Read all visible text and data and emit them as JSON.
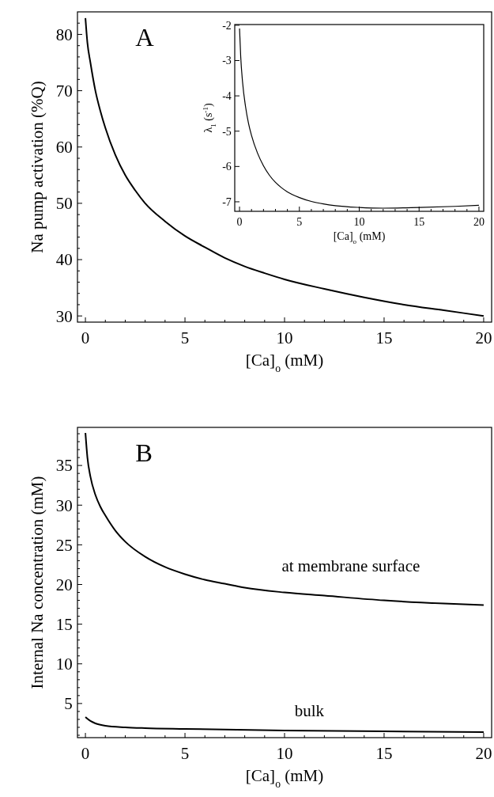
{
  "chart_data": [
    {
      "type": "line",
      "xlabel": "[Ca]$_{o}$ (mM)",
      "ylabel": "Na pump activation (%Q)",
      "annotations": [
        "A"
      ],
      "xlim": [
        -0.4,
        20.4
      ],
      "ylim": [
        28.9,
        84
      ],
      "xticks": [
        0,
        {
          "value": 1,
          "label": null
        },
        {
          "value": 2,
          "label": null
        },
        {
          "value": 3,
          "label": null
        },
        {
          "value": 4,
          "label": null
        },
        5,
        {
          "value": 6,
          "label": null
        },
        {
          "value": 7,
          "label": null
        },
        {
          "value": 8,
          "label": null
        },
        {
          "value": 9,
          "label": null
        },
        10,
        {
          "value": 11,
          "label": null
        },
        {
          "value": 12,
          "label": null
        },
        {
          "value": 13,
          "label": null
        },
        {
          "value": 14,
          "label": null
        },
        15,
        {
          "value": 16,
          "label": null
        },
        {
          "value": 17,
          "label": null
        },
        {
          "value": 18,
          "label": null
        },
        {
          "value": 19,
          "label": null
        },
        20
      ],
      "yticks": [
        30,
        {
          "value": 32,
          "label": null
        },
        {
          "value": 34,
          "label": null
        },
        {
          "value": 36,
          "label": null
        },
        {
          "value": 38,
          "label": null
        },
        40,
        {
          "value": 42,
          "label": null
        },
        {
          "value": 44,
          "label": null
        },
        {
          "value": 46,
          "label": null
        },
        {
          "value": 48,
          "label": null
        },
        50,
        {
          "value": 52,
          "label": null
        },
        {
          "value": 54,
          "label": null
        },
        {
          "value": 56,
          "label": null
        },
        {
          "value": 58,
          "label": null
        },
        60,
        {
          "value": 62,
          "label": null
        },
        {
          "value": 64,
          "label": null
        },
        {
          "value": 66,
          "label": null
        },
        {
          "value": 68,
          "label": null
        },
        70,
        {
          "value": 72,
          "label": null
        },
        {
          "value": 74,
          "label": null
        },
        {
          "value": 76,
          "label": null
        },
        {
          "value": 78,
          "label": null
        },
        80,
        {
          "value": 82,
          "label": null
        }
      ],
      "grid": false,
      "marker": "none",
      "line_style": "solid",
      "series": [
        {
          "color": "#000000",
          "x": [
            0,
            0.1,
            0.25,
            0.5,
            0.75,
            1,
            1.5,
            2,
            2.5,
            3,
            4,
            5,
            6,
            7,
            8,
            9,
            10,
            12,
            14,
            16,
            18,
            20
          ],
          "values": [
            82.9,
            78.5,
            75.0,
            70.0,
            66.4,
            63.4,
            58.6,
            55.0,
            52.3,
            50.0,
            46.8,
            44.2,
            42.2,
            40.3,
            38.8,
            37.6,
            36.5,
            34.8,
            33.3,
            32.0,
            31.0,
            30.0
          ]
        }
      ]
    },
    {
      "type": "line",
      "xlabel": "[Ca]$_{o}$ (mM)",
      "ylabel": "λ$_{1}$ (s$^{-1}$)",
      "xlim": [
        -0.4,
        20.4
      ],
      "ylim": [
        -7.27,
        -1.98
      ],
      "xticks": [
        0,
        {
          "value": 1,
          "label": null
        },
        {
          "value": 2,
          "label": null
        },
        {
          "value": 3,
          "label": null
        },
        {
          "value": 4,
          "label": null
        },
        5,
        {
          "value": 6,
          "label": null
        },
        {
          "value": 7,
          "label": null
        },
        {
          "value": 8,
          "label": null
        },
        {
          "value": 9,
          "label": null
        },
        10,
        {
          "value": 11,
          "label": null
        },
        {
          "value": 12,
          "label": null
        },
        {
          "value": 13,
          "label": null
        },
        {
          "value": 14,
          "label": null
        },
        15,
        {
          "value": 16,
          "label": null
        },
        {
          "value": 17,
          "label": null
        },
        {
          "value": 18,
          "label": null
        },
        {
          "value": 19,
          "label": null
        },
        20
      ],
      "yticks": [
        -7,
        -6,
        -5,
        -4,
        -3,
        -2
      ],
      "grid": false,
      "marker": "none",
      "line_style": "solid",
      "series": [
        {
          "color": "#000000",
          "x": [
            0,
            0.1,
            0.25,
            0.5,
            0.75,
            1,
            1.5,
            2,
            2.5,
            3,
            3.5,
            4,
            5,
            6,
            7,
            8,
            10,
            12,
            15,
            18,
            20
          ],
          "values": [
            -2.09,
            -2.9,
            -3.6,
            -4.3,
            -4.78,
            -5.12,
            -5.62,
            -5.98,
            -6.25,
            -6.45,
            -6.6,
            -6.72,
            -6.88,
            -6.99,
            -7.06,
            -7.11,
            -7.16,
            -7.18,
            -7.16,
            -7.13,
            -7.1
          ]
        }
      ]
    },
    {
      "type": "line",
      "xlabel": "[Ca]$_{o}$ (mM)",
      "ylabel": "Internal Na concentration (mM)",
      "annotations": [
        "B",
        "at membrane surface",
        "bulk"
      ],
      "xlim": [
        -0.4,
        20.4
      ],
      "ylim": [
        0.7,
        39.8
      ],
      "xticks": [
        0,
        {
          "value": 1,
          "label": null
        },
        {
          "value": 2,
          "label": null
        },
        {
          "value": 3,
          "label": null
        },
        {
          "value": 4,
          "label": null
        },
        5,
        {
          "value": 6,
          "label": null
        },
        {
          "value": 7,
          "label": null
        },
        {
          "value": 8,
          "label": null
        },
        {
          "value": 9,
          "label": null
        },
        10,
        {
          "value": 11,
          "label": null
        },
        {
          "value": 12,
          "label": null
        },
        {
          "value": 13,
          "label": null
        },
        {
          "value": 14,
          "label": null
        },
        15,
        {
          "value": 16,
          "label": null
        },
        {
          "value": 17,
          "label": null
        },
        {
          "value": 18,
          "label": null
        },
        {
          "value": 19,
          "label": null
        },
        20
      ],
      "yticks": [
        {
          "value": 1,
          "label": null
        },
        {
          "value": 2,
          "label": null
        },
        {
          "value": 3,
          "label": null
        },
        {
          "value": 4,
          "label": null
        },
        5,
        {
          "value": 6,
          "label": null
        },
        {
          "value": 7,
          "label": null
        },
        {
          "value": 8,
          "label": null
        },
        {
          "value": 9,
          "label": null
        },
        10,
        {
          "value": 11,
          "label": null
        },
        {
          "value": 12,
          "label": null
        },
        {
          "value": 13,
          "label": null
        },
        {
          "value": 14,
          "label": null
        },
        15,
        {
          "value": 16,
          "label": null
        },
        {
          "value": 17,
          "label": null
        },
        {
          "value": 18,
          "label": null
        },
        {
          "value": 19,
          "label": null
        },
        20,
        {
          "value": 21,
          "label": null
        },
        {
          "value": 22,
          "label": null
        },
        {
          "value": 23,
          "label": null
        },
        {
          "value": 24,
          "label": null
        },
        25,
        {
          "value": 26,
          "label": null
        },
        {
          "value": 27,
          "label": null
        },
        {
          "value": 28,
          "label": null
        },
        {
          "value": 29,
          "label": null
        },
        30,
        {
          "value": 31,
          "label": null
        },
        {
          "value": 32,
          "label": null
        },
        {
          "value": 33,
          "label": null
        },
        {
          "value": 34,
          "label": null
        },
        35,
        {
          "value": 36,
          "label": null
        },
        {
          "value": 37,
          "label": null
        },
        {
          "value": 38,
          "label": null
        },
        {
          "value": 39,
          "label": null
        }
      ],
      "grid": false,
      "marker": "none",
      "line_style": "solid",
      "series": [
        {
          "color": "#000000",
          "x": [
            0,
            0.1,
            0.25,
            0.5,
            0.75,
            1,
            1.5,
            2,
            3,
            4,
            5,
            6,
            7,
            8,
            10,
            12,
            15,
            18,
            20
          ],
          "values": [
            39.1,
            36.0,
            33.6,
            31.3,
            29.8,
            28.7,
            26.8,
            25.4,
            23.5,
            22.2,
            21.3,
            20.6,
            20.1,
            19.6,
            19.0,
            18.6,
            18.0,
            17.6,
            17.4
          ]
        },
        {
          "color": "#000000",
          "x": [
            0,
            0.25,
            0.5,
            1,
            2,
            3,
            5,
            10,
            15,
            20
          ],
          "values": [
            3.3,
            2.8,
            2.5,
            2.2,
            2.0,
            1.9,
            1.8,
            1.6,
            1.5,
            1.4
          ]
        }
      ]
    }
  ]
}
